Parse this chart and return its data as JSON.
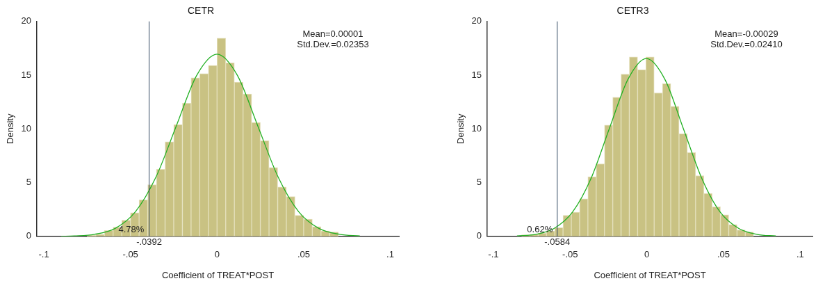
{
  "chart_data": [
    {
      "type": "histogram",
      "title": "CETR",
      "xlabel": "Coefficient of TREAT*POST",
      "ylabel": "Density",
      "color": "#c9c283",
      "bins": [
        -0.075,
        -0.07,
        -0.065,
        -0.06,
        -0.055,
        -0.05,
        -0.045,
        -0.04,
        -0.035,
        -0.03,
        -0.025,
        -0.02,
        -0.015,
        -0.01,
        -0.005,
        0,
        0.005,
        0.01,
        0.015,
        0.02,
        0.025,
        0.03,
        0.035,
        0.04,
        0.045,
        0.05,
        0.055,
        0.06,
        0.065,
        0.07
      ],
      "values": [
        0.1,
        0.2,
        0.55,
        0.85,
        1.5,
        2.2,
        3.4,
        4.8,
        6.25,
        8.8,
        10.4,
        12.4,
        14.75,
        15.15,
        15.9,
        18.45,
        16.15,
        14.35,
        13.25,
        10.6,
        8.9,
        6.4,
        4.6,
        3.7,
        1.95,
        1.6,
        0.9,
        0.5,
        0.4
      ],
      "series": [
        {
          "type": "line",
          "color": "#22b022",
          "x": [
            -0.09,
            -0.0823,
            -0.0706,
            -0.0588,
            -0.0471,
            -0.0353,
            -0.0235,
            -0.0118,
            0,
            0.0118,
            0.0235,
            0.0353,
            0.0471,
            0.0588,
            0.0706,
            0.0824
          ],
          "values": [
            0.01,
            0.04,
            0.19,
            0.74,
            2.29,
            5.5,
            10.28,
            14.96,
            16.95,
            14.96,
            10.28,
            5.5,
            2.29,
            0.74,
            0.19,
            0.04
          ]
        }
      ],
      "xlim": [
        -0.104,
        0.105
      ],
      "xticks": [
        {
          "value": -0.1,
          "label": "-.1"
        },
        {
          "value": -0.05,
          "label": "-.05"
        },
        0,
        {
          "value": 0.05,
          "label": ".05"
        },
        {
          "value": 0.1,
          "label": ".1"
        }
      ],
      "ylim": [
        0,
        20
      ],
      "yticks": [
        0,
        5,
        10,
        15,
        20
      ],
      "ref_lines": [
        {
          "axis": "x",
          "value": -0.0392,
          "label": "-.0392",
          "color": "#2f4660"
        }
      ],
      "annotations": [
        {
          "text": "4.78%",
          "x": -0.0495,
          "y": 0.6
        },
        "Mean=0.00001",
        "Std.Dev.=0.02353"
      ]
    },
    {
      "type": "histogram",
      "title": "CETR3",
      "xlabel": "Coefficient of TREAT*POST",
      "ylabel": "Density",
      "color": "#c9c283",
      "bins": [
        -0.0816,
        -0.0762,
        -0.0708,
        -0.0654,
        -0.06,
        -0.0546,
        -0.0492,
        -0.0438,
        -0.0384,
        -0.033,
        -0.0276,
        -0.0222,
        -0.0168,
        -0.0114,
        -0.006,
        -0.0006,
        0.0048,
        0.0102,
        0.0156,
        0.021,
        0.0264,
        0.0318,
        0.0372,
        0.0426,
        0.048,
        0.0534,
        0.0588,
        0.0642,
        0.0696
      ],
      "values": [
        0.15,
        0.2,
        0.3,
        0.5,
        0.8,
        1.95,
        2.25,
        3.5,
        5.55,
        6.75,
        10.35,
        12.95,
        15.1,
        16.7,
        15.5,
        16.7,
        13.35,
        14.2,
        12.1,
        9.55,
        7.8,
        5.65,
        4,
        2.75,
        2,
        1.1,
        0.6,
        0.4
      ],
      "series": [
        {
          "type": "line",
          "color": "#22b022",
          "x": [
            -0.0846,
            -0.0726,
            -0.0605,
            -0.0485,
            -0.0364,
            -0.0244,
            -0.0123,
            -0.0003,
            0.0118,
            0.0238,
            0.0359,
            0.0479,
            0.06,
            0.072,
            0.0841
          ],
          "values": [
            0.04,
            0.18,
            0.73,
            2.24,
            5.37,
            10.04,
            14.61,
            16.55,
            14.61,
            10.04,
            5.37,
            2.24,
            0.73,
            0.18,
            0.04
          ]
        }
      ],
      "xlim": [
        -0.104,
        0.108
      ],
      "xticks": [
        {
          "value": -0.1,
          "label": "-.1"
        },
        {
          "value": -0.05,
          "label": "-.05"
        },
        0,
        {
          "value": 0.05,
          "label": ".05"
        },
        {
          "value": 0.1,
          "label": ".1"
        }
      ],
      "ylim": [
        0,
        20
      ],
      "yticks": [
        0,
        5,
        10,
        15,
        20
      ],
      "ref_lines": [
        {
          "axis": "x",
          "value": -0.0584,
          "label": "-.0584",
          "color": "#2f4660"
        }
      ],
      "annotations": [
        {
          "text": "0.62%",
          "x": -0.0697,
          "y": 0.6
        },
        "Mean=-0.00029",
        "Std.Dev.=0.02410"
      ]
    }
  ]
}
